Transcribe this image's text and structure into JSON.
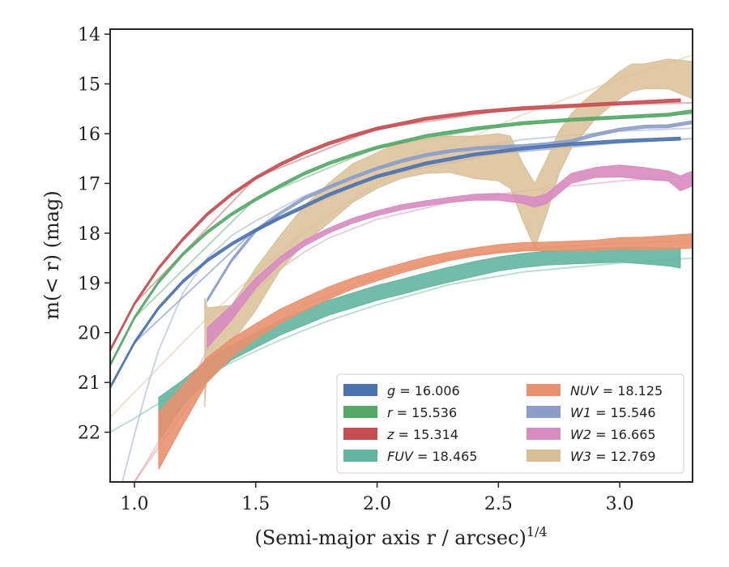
{
  "chart_data": {
    "type": "line",
    "xlabel": "(Semi-major axis r / arcsec)",
    "xlabel_exponent": "1/4",
    "ylabel": "m(< r) (mag)",
    "xlim": [
      0.9,
      3.3
    ],
    "ylim": [
      23,
      13.9
    ],
    "y_inverted": true,
    "x_ticks": [
      1.0,
      1.5,
      2.0,
      2.5,
      3.0
    ],
    "x_tick_labels": [
      "1.0",
      "1.5",
      "2.0",
      "2.5",
      "3.0"
    ],
    "y_ticks": [
      14,
      15,
      16,
      17,
      18,
      19,
      20,
      21,
      22
    ],
    "y_tick_labels": [
      "14",
      "15",
      "16",
      "17",
      "18",
      "19",
      "20",
      "21",
      "22"
    ],
    "grid": false,
    "legend_position": "lower-right",
    "legend_columns": 2,
    "series": [
      {
        "name": "g = 16.006",
        "legend_var": "g",
        "legend_value": "16.006",
        "color": "#4c72b0",
        "x": [
          0.9,
          1.0,
          1.1,
          1.2,
          1.3,
          1.4,
          1.5,
          1.6,
          1.7,
          1.8,
          1.9,
          2.0,
          2.2,
          2.4,
          2.6,
          2.8,
          3.0,
          3.2,
          3.25
        ],
        "y": [
          21.1,
          20.2,
          19.5,
          18.97,
          18.55,
          18.22,
          17.94,
          17.69,
          17.46,
          17.23,
          17.04,
          16.86,
          16.6,
          16.42,
          16.3,
          16.21,
          16.15,
          16.11,
          16.1
        ],
        "y_lo": [
          21.13,
          20.23,
          19.53,
          19.0,
          18.58,
          18.25,
          17.97,
          17.72,
          17.49,
          17.26,
          17.07,
          16.89,
          16.63,
          16.45,
          16.33,
          16.24,
          16.18,
          16.14,
          16.13
        ],
        "y_hi": [
          21.07,
          20.17,
          19.47,
          18.94,
          18.52,
          18.19,
          17.91,
          17.66,
          17.43,
          17.2,
          17.01,
          16.83,
          16.57,
          16.39,
          16.27,
          16.18,
          16.12,
          16.08,
          16.07
        ],
        "model_x": [
          1.0,
          1.5,
          2.0,
          2.5,
          3.0,
          3.3
        ],
        "model_y": [
          20.2,
          17.92,
          16.86,
          16.4,
          16.18,
          16.1
        ]
      },
      {
        "name": "r = 15.536",
        "legend_var": "r",
        "legend_value": "15.536",
        "color": "#55a868",
        "x": [
          0.9,
          1.0,
          1.1,
          1.2,
          1.3,
          1.4,
          1.5,
          1.6,
          1.7,
          1.8,
          1.9,
          2.0,
          2.2,
          2.4,
          2.6,
          2.8,
          3.0,
          3.2,
          3.3
        ],
        "y": [
          20.65,
          19.7,
          18.98,
          18.42,
          17.98,
          17.62,
          17.32,
          17.05,
          16.8,
          16.6,
          16.43,
          16.28,
          16.05,
          15.9,
          15.79,
          15.72,
          15.67,
          15.62,
          15.55
        ],
        "y_lo": [
          20.68,
          19.73,
          19.01,
          18.45,
          18.01,
          17.65,
          17.35,
          17.08,
          16.83,
          16.63,
          16.46,
          16.31,
          16.08,
          15.93,
          15.82,
          15.75,
          15.7,
          15.65,
          15.58
        ],
        "y_hi": [
          20.62,
          19.67,
          18.95,
          18.39,
          17.95,
          17.59,
          17.29,
          17.02,
          16.77,
          16.57,
          16.4,
          16.25,
          16.02,
          15.87,
          15.76,
          15.69,
          15.64,
          15.59,
          15.52
        ],
        "model_x": [
          1.0,
          1.5,
          2.0,
          2.5,
          3.0,
          3.3
        ],
        "model_y": [
          19.7,
          17.3,
          16.28,
          15.85,
          15.68,
          15.6
        ]
      },
      {
        "name": "z = 15.314",
        "legend_var": "z",
        "legend_value": "15.314",
        "color": "#c44e52",
        "x": [
          0.9,
          1.0,
          1.1,
          1.2,
          1.3,
          1.4,
          1.5,
          1.6,
          1.7,
          1.8,
          1.9,
          2.0,
          2.2,
          2.4,
          2.6,
          2.8,
          3.0,
          3.2,
          3.25
        ],
        "y": [
          20.35,
          19.42,
          18.7,
          18.12,
          17.62,
          17.22,
          16.89,
          16.62,
          16.39,
          16.2,
          16.04,
          15.9,
          15.7,
          15.57,
          15.49,
          15.44,
          15.39,
          15.34,
          15.33
        ],
        "y_lo": [
          20.38,
          19.45,
          18.73,
          18.15,
          17.65,
          17.25,
          16.92,
          16.65,
          16.42,
          16.23,
          16.07,
          15.93,
          15.73,
          15.6,
          15.52,
          15.47,
          15.42,
          15.37,
          15.36
        ],
        "y_hi": [
          20.32,
          19.39,
          18.67,
          18.09,
          17.59,
          17.19,
          16.86,
          16.59,
          16.36,
          16.17,
          16.01,
          15.87,
          15.67,
          15.54,
          15.46,
          15.41,
          15.36,
          15.31,
          15.3
        ],
        "model_x": [
          1.0,
          1.5,
          2.0,
          2.5,
          3.0,
          3.3
        ],
        "model_y": [
          19.42,
          16.88,
          15.9,
          15.55,
          15.42,
          15.38
        ]
      },
      {
        "name": "FUV = 18.465",
        "legend_var": "FUV",
        "legend_value": "18.465",
        "color": "#64b5a0",
        "x": [
          1.1,
          1.2,
          1.3,
          1.4,
          1.5,
          1.6,
          1.7,
          1.8,
          1.9,
          2.0,
          2.1,
          2.2,
          2.3,
          2.4,
          2.5,
          2.6,
          2.7,
          2.8,
          2.9,
          3.0,
          3.1,
          3.2,
          3.25
        ],
        "y": [
          21.7,
          21.2,
          20.75,
          20.4,
          20.15,
          19.9,
          19.7,
          19.5,
          19.35,
          19.2,
          19.08,
          18.95,
          18.83,
          18.72,
          18.62,
          18.55,
          18.5,
          18.48,
          18.45,
          18.43,
          18.45,
          18.48,
          18.5
        ],
        "y_lo": [
          22.2,
          21.45,
          20.95,
          20.55,
          20.3,
          20.05,
          19.85,
          19.65,
          19.5,
          19.35,
          19.23,
          19.1,
          18.98,
          18.87,
          18.76,
          18.69,
          18.64,
          18.62,
          18.6,
          18.58,
          18.62,
          18.66,
          18.7
        ],
        "y_hi": [
          21.3,
          20.95,
          20.55,
          20.25,
          20.0,
          19.75,
          19.55,
          19.35,
          19.2,
          19.05,
          18.93,
          18.8,
          18.68,
          18.57,
          18.48,
          18.41,
          18.36,
          18.34,
          18.3,
          18.28,
          18.28,
          18.3,
          18.3
        ],
        "model_x": [
          0.9,
          1.0,
          1.1,
          1.2,
          1.3,
          1.4,
          1.5,
          1.6,
          1.7,
          1.8,
          1.9,
          2.0,
          2.3,
          2.6,
          3.0,
          3.3
        ],
        "model_y": [
          22.0,
          21.72,
          21.42,
          21.13,
          20.85,
          20.6,
          20.37,
          20.15,
          19.95,
          19.76,
          19.6,
          19.44,
          19.03,
          18.78,
          18.6,
          18.5
        ]
      },
      {
        "name": "NUV = 18.125",
        "legend_var": "NUV",
        "legend_value": "18.125",
        "color": "#e8916f",
        "x": [
          1.1,
          1.2,
          1.3,
          1.4,
          1.5,
          1.6,
          1.7,
          1.8,
          1.9,
          2.0,
          2.1,
          2.2,
          2.3,
          2.4,
          2.5,
          2.6,
          2.7,
          2.8,
          2.9,
          3.0,
          3.1,
          3.2,
          3.3
        ],
        "y": [
          22.0,
          21.35,
          20.72,
          20.3,
          19.97,
          19.67,
          19.42,
          19.2,
          19.0,
          18.85,
          18.7,
          18.57,
          18.46,
          18.37,
          18.31,
          18.27,
          18.26,
          18.25,
          18.24,
          18.2,
          18.2,
          18.18,
          18.15
        ],
        "y_lo": [
          22.75,
          21.85,
          21.0,
          20.5,
          20.13,
          19.82,
          19.56,
          19.33,
          19.12,
          18.96,
          18.8,
          18.67,
          18.55,
          18.46,
          18.4,
          18.36,
          18.35,
          18.35,
          18.35,
          18.32,
          18.33,
          18.32,
          18.3
        ],
        "y_hi": [
          21.6,
          21.05,
          20.5,
          20.12,
          19.82,
          19.53,
          19.3,
          19.08,
          18.9,
          18.75,
          18.61,
          18.48,
          18.38,
          18.3,
          18.23,
          18.19,
          18.18,
          18.16,
          18.14,
          18.09,
          18.08,
          18.05,
          18.01
        ],
        "model_x": [
          1.0,
          1.05,
          1.1,
          1.2,
          1.3,
          1.4,
          1.5,
          1.7,
          2.0,
          2.3,
          2.6,
          3.0,
          3.3
        ],
        "model_y": [
          23.0,
          22.65,
          22.3,
          21.6,
          20.95,
          20.45,
          20.05,
          19.45,
          18.85,
          18.5,
          18.32,
          18.2,
          18.15
        ]
      },
      {
        "name": "W1 = 15.546",
        "legend_var": "W1",
        "legend_value": "15.546",
        "color": "#8c9ec8",
        "x": [
          1.3,
          1.4,
          1.5,
          1.6,
          1.7,
          1.8,
          1.9,
          2.0,
          2.1,
          2.2,
          2.3,
          2.4,
          2.5,
          2.6,
          2.7,
          2.8,
          2.9,
          3.0,
          3.1,
          3.2,
          3.3
        ],
        "y": [
          19.35,
          18.55,
          17.95,
          17.6,
          17.3,
          17.08,
          16.88,
          16.7,
          16.55,
          16.43,
          16.35,
          16.3,
          16.27,
          16.25,
          16.21,
          16.15,
          16.02,
          15.92,
          15.86,
          15.85,
          15.77
        ],
        "y_lo": [
          19.38,
          18.58,
          17.98,
          17.63,
          17.33,
          17.11,
          16.91,
          16.73,
          16.58,
          16.46,
          16.38,
          16.33,
          16.3,
          16.28,
          16.24,
          16.18,
          16.05,
          15.95,
          15.89,
          15.88,
          15.8
        ],
        "y_hi": [
          19.32,
          18.52,
          17.92,
          17.57,
          17.27,
          17.05,
          16.85,
          16.67,
          16.52,
          16.4,
          16.32,
          16.27,
          16.24,
          16.22,
          16.18,
          16.12,
          15.99,
          15.89,
          15.83,
          15.82,
          15.74
        ],
        "model_x": [
          0.9,
          0.95,
          1.0,
          1.05,
          1.1,
          1.2,
          1.3,
          1.4,
          1.5,
          1.7,
          2.0,
          2.3,
          2.6,
          3.0,
          3.3
        ],
        "model_y": [
          24.0,
          23.0,
          22.05,
          21.15,
          20.35,
          19.2,
          18.5,
          18.05,
          17.75,
          17.25,
          16.7,
          16.35,
          16.12,
          15.95,
          15.89
        ]
      },
      {
        "name": "W2 = 16.665",
        "legend_var": "W2",
        "legend_value": "16.665",
        "color": "#d88bc0",
        "x": [
          1.3,
          1.4,
          1.5,
          1.6,
          1.7,
          1.8,
          1.9,
          2.0,
          2.1,
          2.2,
          2.3,
          2.4,
          2.5,
          2.6,
          2.65,
          2.7,
          2.75,
          2.8,
          2.9,
          3.0,
          3.1,
          3.2,
          3.25,
          3.3
        ],
        "y": [
          20.1,
          19.6,
          19.0,
          18.55,
          18.2,
          17.95,
          17.75,
          17.6,
          17.48,
          17.4,
          17.33,
          17.28,
          17.27,
          17.32,
          17.38,
          17.3,
          17.1,
          16.9,
          16.78,
          16.75,
          16.8,
          16.85,
          17.0,
          16.9
        ],
        "y_lo": [
          20.3,
          19.75,
          19.1,
          18.62,
          18.26,
          18.0,
          17.8,
          17.65,
          17.53,
          17.45,
          17.38,
          17.34,
          17.34,
          17.4,
          17.48,
          17.4,
          17.2,
          17.0,
          16.88,
          16.87,
          16.92,
          16.95,
          17.15,
          17.05
        ],
        "y_hi": [
          19.9,
          19.45,
          18.9,
          18.48,
          18.14,
          17.9,
          17.7,
          17.55,
          17.43,
          17.35,
          17.28,
          17.22,
          17.2,
          17.24,
          17.28,
          17.2,
          17.0,
          16.8,
          16.68,
          16.63,
          16.68,
          16.75,
          16.85,
          16.75
        ],
        "model_x": [
          1.0,
          1.1,
          1.2,
          1.3,
          1.4,
          1.5,
          1.6,
          1.7,
          1.8,
          2.0,
          2.3,
          2.6,
          3.0,
          3.3
        ],
        "model_y": [
          23.0,
          22.2,
          21.3,
          20.35,
          19.7,
          19.15,
          18.72,
          18.38,
          18.1,
          17.72,
          17.38,
          17.15,
          16.95,
          16.85
        ]
      },
      {
        "name": "W3 = 12.769",
        "legend_var": "W3",
        "legend_value": "12.769",
        "color": "#d9bf96",
        "x": [
          1.29,
          1.3,
          1.4,
          1.5,
          1.6,
          1.7,
          1.8,
          1.9,
          2.0,
          2.1,
          2.2,
          2.3,
          2.4,
          2.5,
          2.55,
          2.6,
          2.65,
          2.7,
          2.75,
          2.8,
          2.85,
          2.9,
          2.95,
          3.0,
          3.05,
          3.1,
          3.2,
          3.3
        ],
        "y": [
          20.4,
          20.2,
          19.8,
          19.1,
          18.4,
          17.82,
          17.4,
          17.0,
          16.75,
          16.55,
          16.45,
          16.4,
          16.48,
          16.5,
          16.6,
          17.2,
          17.65,
          17.1,
          16.4,
          16.0,
          15.7,
          15.45,
          15.25,
          15.05,
          14.9,
          14.85,
          14.9,
          15.1
        ],
        "y_lo": [
          21.5,
          20.7,
          20.2,
          19.55,
          18.75,
          18.2,
          17.8,
          17.38,
          17.1,
          16.9,
          16.8,
          16.78,
          16.9,
          16.95,
          17.1,
          17.75,
          18.3,
          17.6,
          16.8,
          16.3,
          16.0,
          15.7,
          15.5,
          15.3,
          15.15,
          15.1,
          15.1,
          15.3
        ],
        "y_hi": [
          19.3,
          19.5,
          19.45,
          18.7,
          18.05,
          17.45,
          17.0,
          16.6,
          16.38,
          16.15,
          16.1,
          16.05,
          16.05,
          16.0,
          16.05,
          16.6,
          17.0,
          16.5,
          15.95,
          15.6,
          15.35,
          15.15,
          14.95,
          14.75,
          14.6,
          14.6,
          14.5,
          14.55
        ],
        "model_x": [
          0.9,
          1.0,
          1.1,
          1.2,
          1.3,
          1.5,
          1.7,
          2.0,
          2.3,
          2.6,
          3.0,
          3.3
        ],
        "model_y": [
          21.7,
          21.2,
          20.7,
          20.2,
          19.7,
          18.8,
          17.98,
          17.0,
          16.25,
          15.62,
          14.9,
          14.42
        ]
      }
    ]
  }
}
